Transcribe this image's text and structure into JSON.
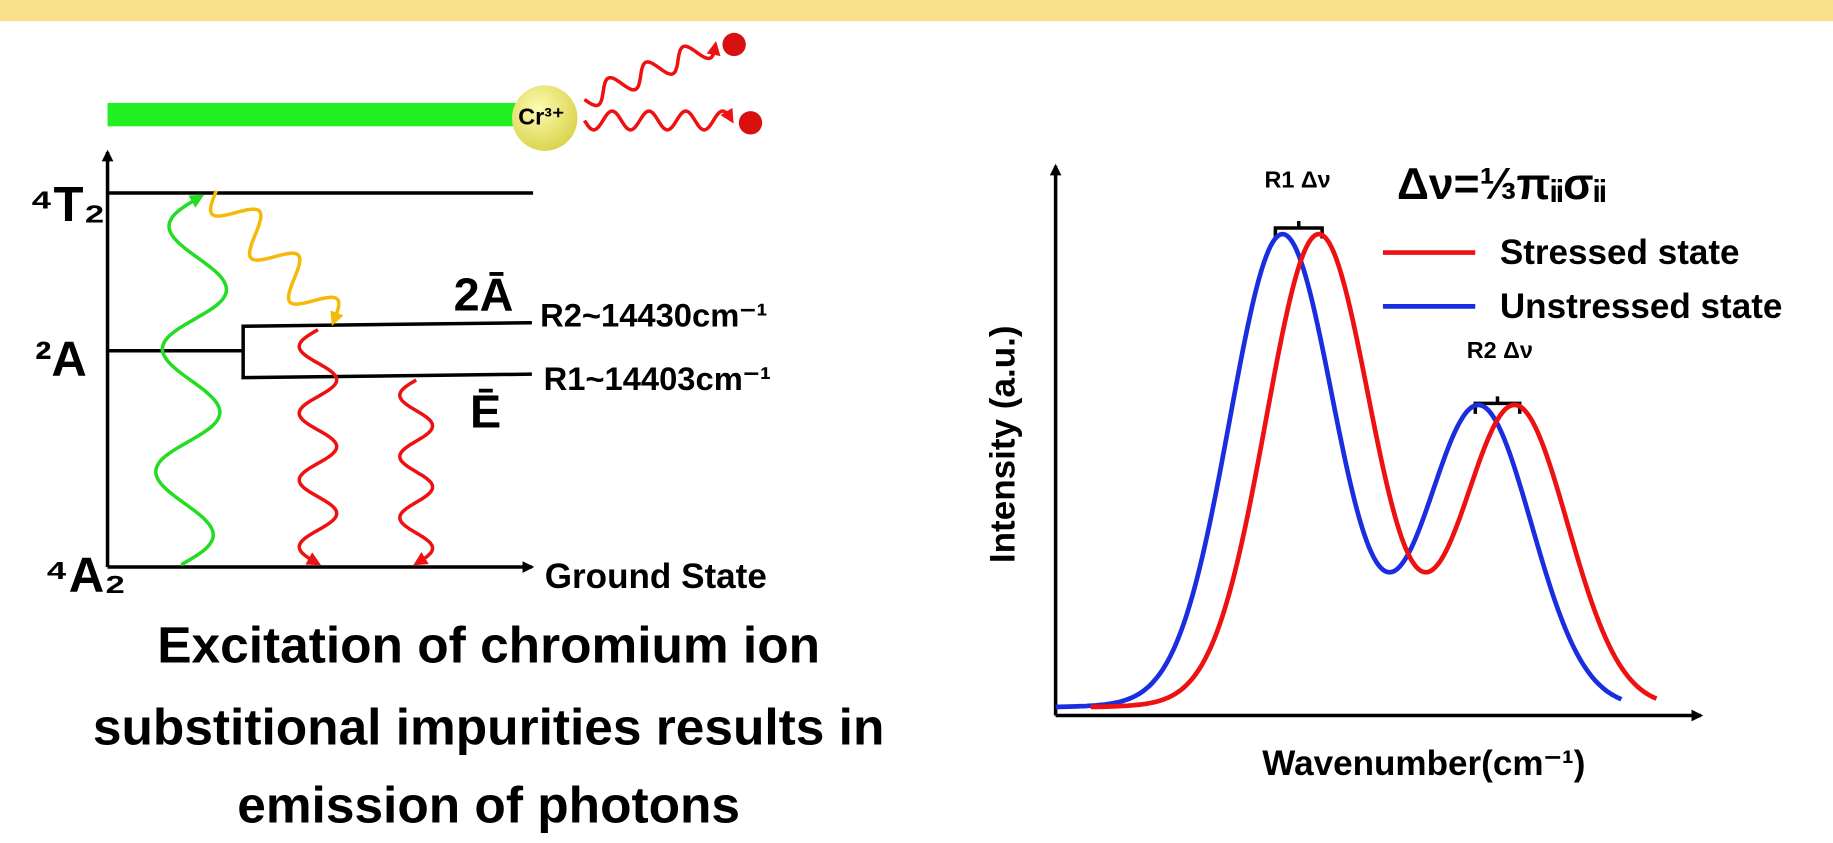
{
  "energy_diagram": {
    "ion": "Cr³⁺",
    "levels": [
      "⁴T₂",
      "²A",
      "⁴A₂"
    ],
    "split_levels": [
      "2Ā",
      "Ē"
    ],
    "lines": [
      "R2~14430cm⁻¹",
      "R1~14403cm⁻¹"
    ],
    "ground": "Ground State",
    "caption": [
      "Excitation of chromium ion",
      "substitional impurities results in",
      "emission of photons"
    ]
  },
  "spectrum": {
    "y_label": "Intensity (a.u.)",
    "x_label": "Wavenumber(cm⁻¹)",
    "formula": "Δν=⅓πᵢᵢσᵢᵢ",
    "peak_labels": [
      "R1 Δν",
      "R2 Δν"
    ],
    "legend": [
      {
        "name": "Stressed state",
        "color": "#ee1111"
      },
      {
        "name": "Unstressed state",
        "color": "#1a2ee0"
      }
    ]
  }
}
